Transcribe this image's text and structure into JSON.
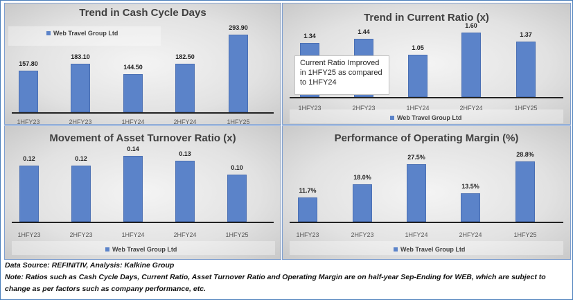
{
  "chart_data": [
    {
      "type": "bar",
      "title": "Trend in Cash Cycle Days",
      "categories": [
        "1HFY23",
        "2HFY23",
        "1HFY24",
        "2HFY24",
        "1HFY25"
      ],
      "values": [
        157.8,
        183.1,
        144.5,
        182.5,
        293.9
      ],
      "labels": [
        "157.80",
        "183.10",
        "144.50",
        "182.50",
        "293.90"
      ],
      "legend": "Web Travel Group Ltd",
      "legend_position": "top-left",
      "ylim": [
        0,
        293.9
      ]
    },
    {
      "type": "bar",
      "title": "Trend in Current Ratio (x)",
      "categories": [
        "1HFY23",
        "2HFY23",
        "1HFY24",
        "2HFY24",
        "1HFY25"
      ],
      "values": [
        1.34,
        1.44,
        1.05,
        1.6,
        1.37
      ],
      "labels": [
        "1.34",
        "1.44",
        "1.05",
        "1.60",
        "1.37"
      ],
      "legend": "Web Travel Group Ltd",
      "legend_position": "bottom",
      "annotation": "Current Ratio Improved in 1HFY25 as compared to 1HFY24",
      "ylim": [
        0,
        1.6
      ]
    },
    {
      "type": "bar",
      "title": "Movement of Asset Turnover Ratio (x)",
      "categories": [
        "1HFY23",
        "2HFY23",
        "1HFY24",
        "2HFY24",
        "1HFY25"
      ],
      "values": [
        0.12,
        0.12,
        0.14,
        0.13,
        0.1
      ],
      "labels": [
        "0.12",
        "0.12",
        "0.14",
        "0.13",
        "0.10"
      ],
      "legend": "Web Travel Group Ltd",
      "legend_position": "bottom",
      "ylim": [
        0,
        0.14
      ]
    },
    {
      "type": "bar",
      "title": "Performance of Operating Margin (%)",
      "categories": [
        "1HFY23",
        "2HFY23",
        "1HFY24",
        "2HFY24",
        "1HFY25"
      ],
      "values": [
        11.7,
        18.0,
        27.5,
        13.5,
        28.8
      ],
      "labels": [
        "11.7%",
        "18.0%",
        "27.5%",
        "13.5%",
        "28.8%"
      ],
      "legend": "Web Travel Group Ltd",
      "legend_position": "bottom",
      "ylim": [
        0,
        28.8
      ]
    }
  ],
  "footer": {
    "source": "Data Source: REFINITIV, Analysis: Kalkine Group",
    "note_line1": "Note: Ratios such as Cash Cycle Days, Current Ratio, Asset Turnover Ratio and Operating Margin are on half-year Sep-Ending for WEB, which are subject to",
    "note_line2": "change as per factors such as company performance, etc."
  }
}
